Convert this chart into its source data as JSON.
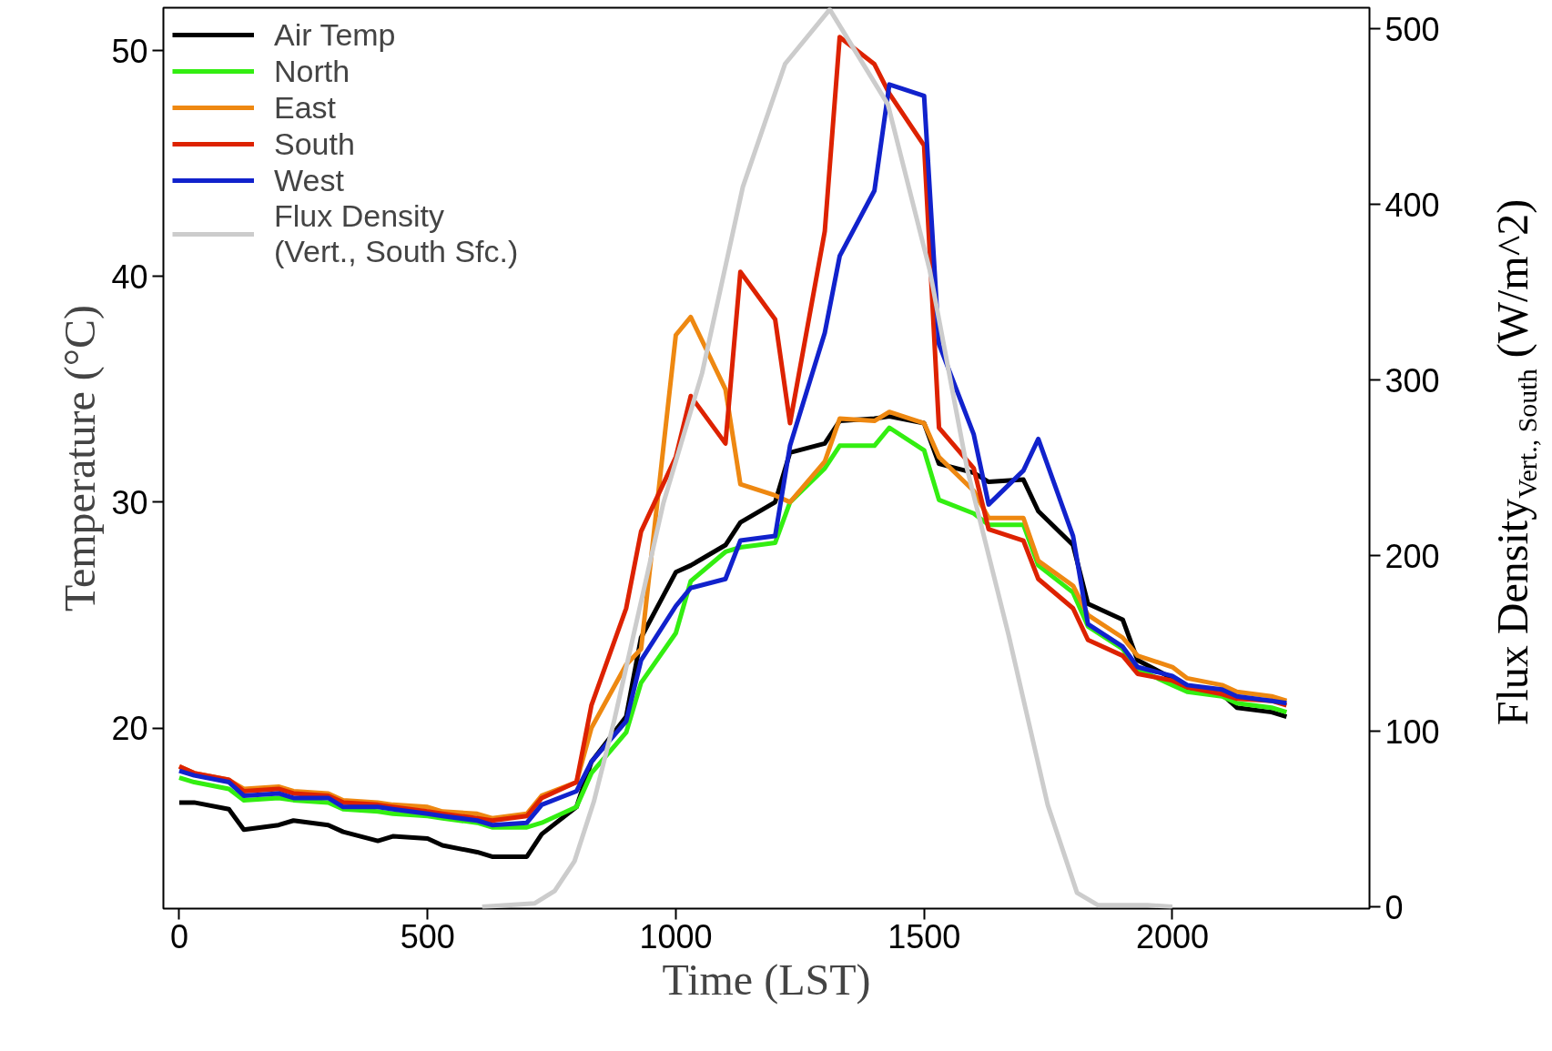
{
  "chart_data": {
    "type": "line",
    "xlabel": "Time (LST)",
    "ylabel": "Temperature (°C)",
    "y2label": "Flux Density$_{Vert., South}$ (W/m^2)",
    "x": [
      0,
      30,
      100,
      130,
      200,
      230,
      300,
      330,
      400,
      430,
      500,
      530,
      600,
      630,
      700,
      730,
      800,
      830,
      900,
      930,
      1000,
      1030,
      1100,
      1130,
      1200,
      1230,
      1300,
      1330,
      1400,
      1430,
      1500,
      1530,
      1600,
      1630,
      1700,
      1730,
      1800,
      1830,
      1900,
      1930,
      2000,
      2030,
      2100,
      2130,
      2200,
      2230
    ],
    "xlim": [
      -32,
      2397
    ],
    "xticks": [
      0,
      500,
      1000,
      1500,
      2000
    ],
    "ylim": [
      12.0,
      51.9
    ],
    "yticks": [
      20,
      30,
      40,
      50
    ],
    "y2lim": [
      -1,
      512
    ],
    "y2ticks": [
      0,
      100,
      200,
      300,
      400,
      500
    ],
    "grid": false,
    "legend": "top left",
    "line_style": "solid",
    "marker": "none",
    "series": [
      {
        "name": "Air Temp",
        "color": "#000000",
        "values": [
          16.7,
          16.7,
          16.4,
          15.5,
          15.7,
          15.9,
          15.7,
          15.4,
          15.0,
          15.2,
          15.1,
          14.8,
          14.5,
          14.3,
          14.3,
          15.3,
          16.5,
          18.5,
          20.5,
          24.0,
          26.9,
          27.2,
          28.1,
          29.1,
          30.0,
          32.2,
          32.6,
          33.6,
          33.7,
          33.8,
          33.5,
          31.7,
          31.3,
          30.9,
          31.0,
          29.6,
          28.1,
          25.5,
          24.8,
          23.0,
          22.2,
          21.7,
          21.5,
          20.9,
          20.7,
          20.5
        ]
      },
      {
        "name": "North",
        "color": "#33ee11",
        "values": [
          17.8,
          17.6,
          17.3,
          16.8,
          16.9,
          16.8,
          16.7,
          16.4,
          16.3,
          16.2,
          16.1,
          16.0,
          15.8,
          15.6,
          15.6,
          15.8,
          16.5,
          18.0,
          19.8,
          22.0,
          24.2,
          26.5,
          27.8,
          28.0,
          28.2,
          30.0,
          31.5,
          32.5,
          32.5,
          33.3,
          32.3,
          30.1,
          29.5,
          29.0,
          29.0,
          27.2,
          26.0,
          24.5,
          23.5,
          22.6,
          21.9,
          21.6,
          21.4,
          21.1,
          20.9,
          20.7
        ]
      },
      {
        "name": "East",
        "color": "#ee8811",
        "values": [
          18.3,
          18.0,
          17.7,
          17.3,
          17.4,
          17.2,
          17.1,
          16.8,
          16.7,
          16.6,
          16.5,
          16.3,
          16.2,
          16.0,
          16.2,
          17.0,
          17.6,
          20.0,
          22.8,
          23.5,
          37.4,
          38.2,
          35.0,
          30.8,
          30.3,
          30.0,
          31.8,
          33.7,
          33.6,
          34.0,
          33.5,
          32.0,
          30.5,
          29.3,
          29.3,
          27.4,
          26.3,
          25.0,
          24.0,
          23.2,
          22.7,
          22.2,
          21.9,
          21.6,
          21.4,
          21.2
        ]
      },
      {
        "name": "South",
        "color": "#dd2200",
        "values": [
          18.3,
          18.0,
          17.7,
          17.2,
          17.3,
          17.1,
          17.0,
          16.7,
          16.6,
          16.5,
          16.3,
          16.2,
          16.0,
          15.9,
          16.1,
          16.9,
          17.6,
          21.0,
          25.3,
          28.7,
          32.0,
          34.7,
          32.6,
          40.2,
          38.1,
          33.5,
          42.0,
          50.6,
          49.4,
          48.1,
          45.8,
          33.3,
          31.5,
          28.8,
          28.3,
          26.6,
          25.3,
          23.9,
          23.2,
          22.4,
          22.1,
          21.8,
          21.5,
          21.3,
          21.2,
          21.0
        ]
      },
      {
        "name": "West",
        "color": "#1122cc",
        "values": [
          18.1,
          17.9,
          17.6,
          17.0,
          17.1,
          16.9,
          16.9,
          16.5,
          16.5,
          16.4,
          16.2,
          16.1,
          15.9,
          15.7,
          15.8,
          16.6,
          17.2,
          18.5,
          20.3,
          23.0,
          25.4,
          26.2,
          26.6,
          28.3,
          28.5,
          32.5,
          37.5,
          40.9,
          43.8,
          48.5,
          48.0,
          37.0,
          33.0,
          29.9,
          31.4,
          32.8,
          28.5,
          24.6,
          23.6,
          22.7,
          22.3,
          21.9,
          21.7,
          21.4,
          21.2,
          21.1
        ]
      },
      {
        "name": "Flux Density\n(Vert., South Sfc.)",
        "color": "#cccccc",
        "axis": "y2",
        "x": [
          610,
          716,
          756,
          796,
          835,
          875,
          915,
          975,
          1053,
          1135,
          1220,
          1310,
          1427,
          1511,
          1587,
          1670,
          1749,
          1808,
          1850,
          1950,
          2000
        ],
        "values": [
          0,
          2,
          9,
          26,
          60,
          105,
          155,
          230,
          304,
          410,
          480,
          511,
          457,
          363,
          249,
          155,
          58,
          8,
          1,
          1,
          0
        ]
      }
    ]
  }
}
